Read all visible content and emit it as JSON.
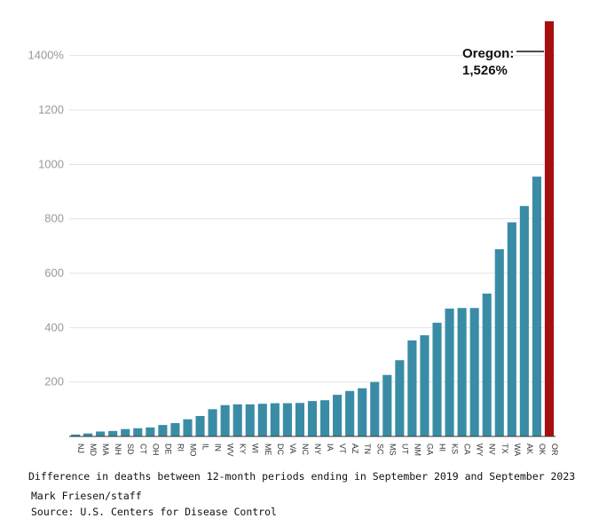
{
  "chart_data": {
    "type": "bar",
    "categories": [
      "NJ",
      "MD",
      "MA",
      "NH",
      "SD",
      "CT",
      "OH",
      "DE",
      "RI",
      "MO",
      "IL",
      "IN",
      "WV",
      "KY",
      "WI",
      "ME",
      "DC",
      "VA",
      "NC",
      "NY",
      "IA",
      "VT",
      "AZ",
      "TN",
      "SC",
      "MS",
      "UT",
      "NM",
      "GA",
      "HI",
      "KS",
      "CA",
      "WY",
      "NV",
      "TX",
      "WA",
      "AK",
      "OK",
      "OR"
    ],
    "values": [
      7,
      11,
      18,
      20,
      27,
      30,
      33,
      42,
      49,
      63,
      75,
      100,
      115,
      118,
      118,
      120,
      122,
      122,
      123,
      130,
      133,
      153,
      167,
      177,
      200,
      226,
      280,
      353,
      372,
      418,
      470,
      472,
      472,
      525,
      688,
      787,
      847,
      955,
      1526
    ],
    "ylim": [
      0,
      1526
    ],
    "yticks": [
      200,
      400,
      600,
      800,
      1000,
      1200,
      1400
    ],
    "ytick_labels": [
      "200",
      "400",
      "600",
      "800",
      "1000",
      "1200",
      "1400%"
    ],
    "grid": true,
    "bar_color": "#3a8ca6",
    "highlight_color": "#a50f0f",
    "highlight_category": "OR",
    "annotation": {
      "line1": "Oregon:",
      "line2": "1,526%"
    }
  },
  "caption": "Difference in deaths between 12-month periods ending in September 2019 and September 2023",
  "credit": "Mark Friesen/staff",
  "source": "Source: U.S. Centers for Disease Control"
}
